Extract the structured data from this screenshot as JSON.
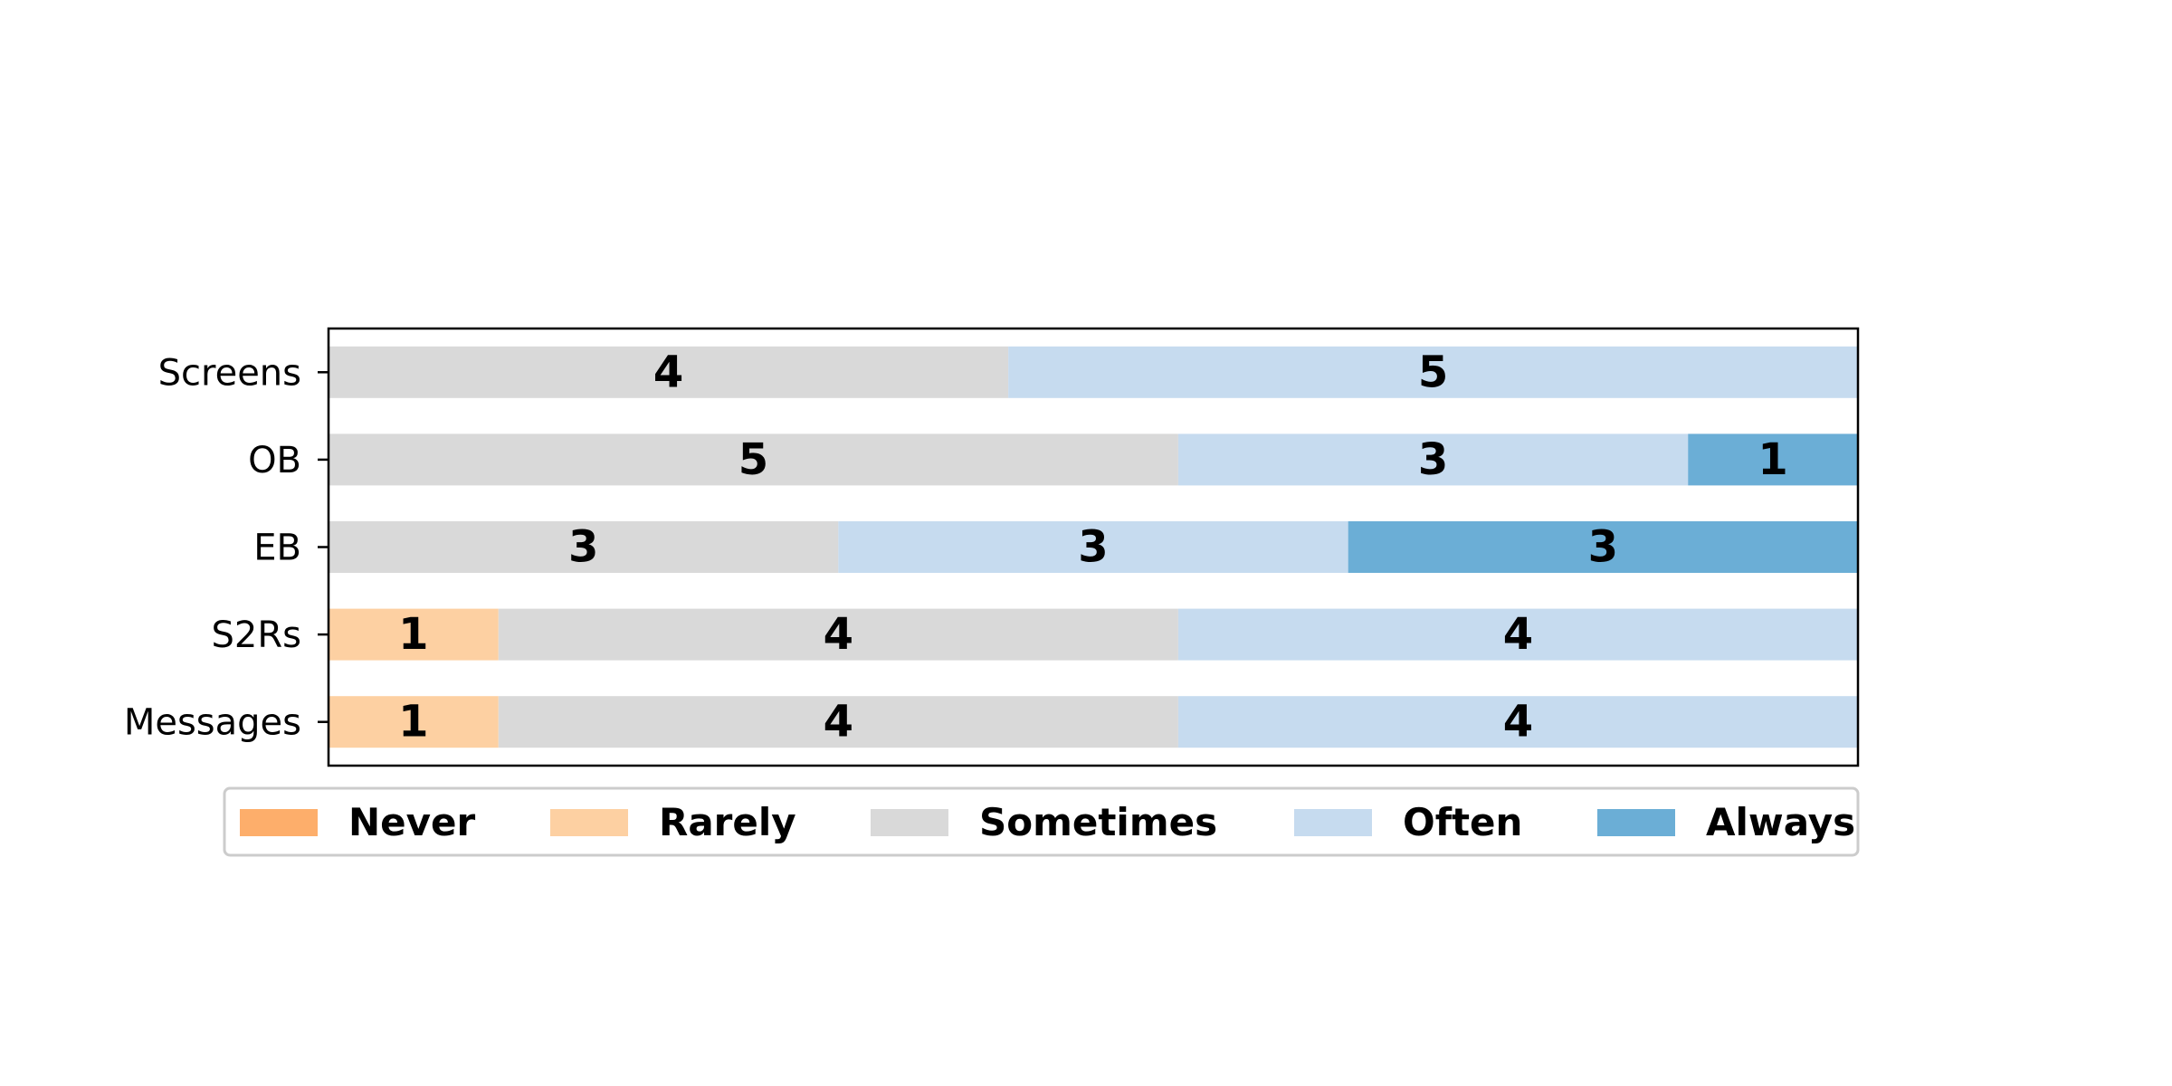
{
  "chart_data": {
    "type": "bar",
    "orientation": "horizontal",
    "stacked": true,
    "normalized": true,
    "categories": [
      "Screens",
      "OB",
      "EB",
      "S2Rs",
      "Messages"
    ],
    "series": [
      {
        "name": "Never",
        "color": "#fdae6b",
        "values": [
          0,
          0,
          0,
          0,
          0
        ]
      },
      {
        "name": "Rarely",
        "color": "#fdd0a2",
        "values": [
          0,
          0,
          0,
          1,
          1
        ]
      },
      {
        "name": "Sometimes",
        "color": "#d9d9d9",
        "values": [
          4,
          5,
          3,
          4,
          4
        ]
      },
      {
        "name": "Often",
        "color": "#c6dbef",
        "values": [
          5,
          3,
          3,
          4,
          4
        ]
      },
      {
        "name": "Always",
        "color": "#6baed6",
        "values": [
          0,
          1,
          3,
          0,
          0
        ]
      }
    ],
    "xlim": [
      0,
      1
    ],
    "x_axis_visible": false,
    "grid": false,
    "legend_position": "bottom",
    "legend_columns": 5
  }
}
